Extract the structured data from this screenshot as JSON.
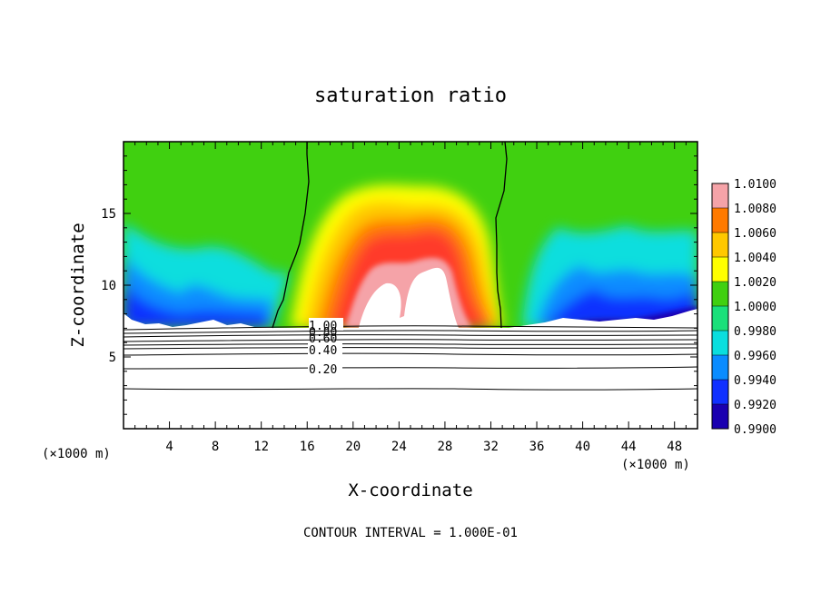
{
  "chart_data": {
    "type": "heatmap",
    "title": "saturation ratio",
    "xlabel": "X-coordinate",
    "ylabel": "Z-coordinate",
    "x_unit_label": "(×1000 m)",
    "xlim": [
      0,
      50
    ],
    "ylim": [
      0,
      20
    ],
    "x_ticks": [
      4,
      8,
      12,
      16,
      20,
      24,
      28,
      32,
      36,
      40,
      44,
      48
    ],
    "y_ticks": [
      5,
      10,
      15
    ],
    "colorbar": {
      "levels": [
        "1.0100",
        "1.0080",
        "1.0060",
        "1.0040",
        "1.0020",
        "1.0000",
        "0.9980",
        "0.9960",
        "0.9940",
        "0.9920",
        "0.9900"
      ],
      "colors": [
        "#f5a3a8",
        "#ff3a2a",
        "#ff7a00",
        "#ffc800",
        "#ffff00",
        "#40d010",
        "#1ae07a",
        "#0adede",
        "#0a8cff",
        "#1030ff",
        "#1a00b0",
        "#400080"
      ]
    },
    "contour_labels": [
      {
        "text": "1.00",
        "x": 15.8,
        "y": 7.1
      },
      {
        "text": "0.80",
        "x": 15.8,
        "y": 6.5
      },
      {
        "text": "0.60",
        "x": 15.8,
        "y": 5.9
      },
      {
        "text": "0.40",
        "x": 15.8,
        "y": 5.3
      },
      {
        "text": "0.20",
        "x": 15.8,
        "y": 4.2
      }
    ],
    "contour_lines_z": [
      7.1,
      6.8,
      6.5,
      6.2,
      5.9,
      5.6,
      5.2,
      4.2,
      2.8
    ],
    "saturation_boundary_left": [
      [
        13.0,
        7.0
      ],
      [
        13.6,
        8.5
      ],
      [
        14.2,
        10.0
      ],
      [
        14.9,
        11.8
      ],
      [
        15.5,
        13.0
      ],
      [
        16.1,
        14.5
      ],
      [
        16.2,
        16.5
      ],
      [
        16.0,
        18.5
      ],
      [
        16.0,
        20.0
      ]
    ],
    "saturation_boundary_right": [
      [
        32.8,
        7.0
      ],
      [
        32.6,
        9.0
      ],
      [
        32.3,
        11.0
      ],
      [
        32.2,
        13.0
      ],
      [
        32.2,
        15.0
      ],
      [
        32.0,
        17.0
      ],
      [
        32.2,
        18.8
      ],
      [
        32.2,
        20.0
      ]
    ],
    "contour_interval_text": "CONTOUR INTERVAL = 1.000E-01"
  }
}
